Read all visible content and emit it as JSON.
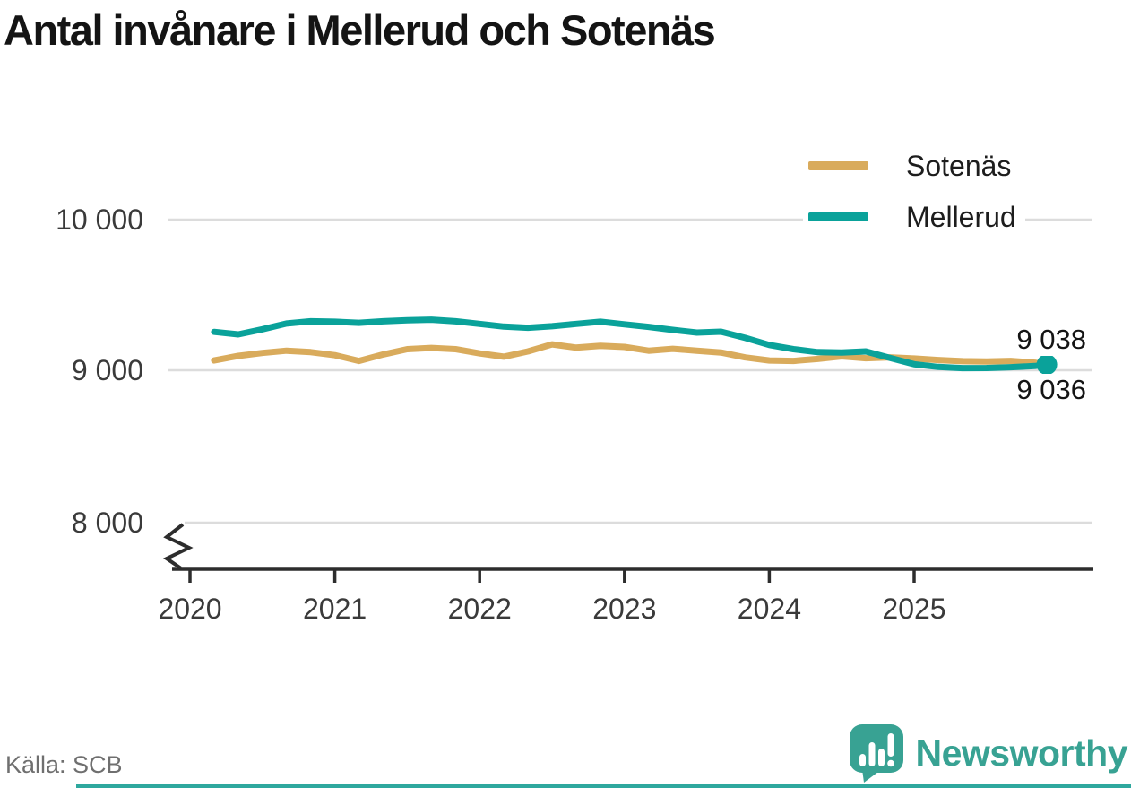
{
  "title": "Antal invånare i Mellerud och Sotenäs",
  "source": "Källa: SCB",
  "branding": {
    "name": "Newsworthy",
    "color": "#38a293",
    "strip_color": "#2ea89e"
  },
  "end_labels": {
    "top": "9 038",
    "bottom": "9 036"
  },
  "chart_data": {
    "type": "line",
    "title": "Antal invånare i Mellerud och Sotenäs",
    "xlabel": "",
    "ylabel": "",
    "grid": "horizontal",
    "axis_break": true,
    "legend_position": "top-right",
    "yticks": [
      "10 000",
      "9 000",
      "8 000"
    ],
    "ytick_values": [
      10000,
      9000,
      8000
    ],
    "xticks": [
      "2020",
      "2021",
      "2022",
      "2023",
      "2024",
      "2025"
    ],
    "ylim_display": [
      7800,
      10150
    ],
    "x": [
      "2020-02",
      "2020-04",
      "2020-06",
      "2020-08",
      "2020-10",
      "2020-12",
      "2021-02",
      "2021-04",
      "2021-06",
      "2021-08",
      "2021-10",
      "2021-12",
      "2022-02",
      "2022-04",
      "2022-06",
      "2022-08",
      "2022-10",
      "2022-12",
      "2023-02",
      "2023-04",
      "2023-06",
      "2023-08",
      "2023-10",
      "2023-12",
      "2024-02",
      "2024-04",
      "2024-06",
      "2024-08",
      "2024-10",
      "2024-12",
      "2025-02",
      "2025-04",
      "2025-06",
      "2025-08",
      "2025-10",
      "2025-11"
    ],
    "series": [
      {
        "name": "Sotenäs",
        "color": "#d9ab5c",
        "end_label": "9 036",
        "end_value": 9036,
        "values": [
          9065,
          9095,
          9115,
          9130,
          9120,
          9100,
          9062,
          9105,
          9140,
          9148,
          9140,
          9112,
          9090,
          9125,
          9172,
          9150,
          9162,
          9155,
          9130,
          9142,
          9130,
          9118,
          9085,
          9065,
          9062,
          9075,
          9092,
          9080,
          9086,
          9078,
          9068,
          9060,
          9058,
          9062,
          9050,
          9036
        ]
      },
      {
        "name": "Mellerud",
        "color": "#0aa29a",
        "end_label": "9 038",
        "end_value": 9038,
        "end_dot": true,
        "values": [
          9255,
          9238,
          9272,
          9310,
          9325,
          9322,
          9315,
          9325,
          9332,
          9336,
          9325,
          9308,
          9290,
          9282,
          9292,
          9308,
          9322,
          9305,
          9288,
          9268,
          9250,
          9256,
          9215,
          9168,
          9140,
          9120,
          9118,
          9125,
          9082,
          9040,
          9022,
          9014,
          9015,
          9020,
          9028,
          9038
        ]
      }
    ]
  }
}
